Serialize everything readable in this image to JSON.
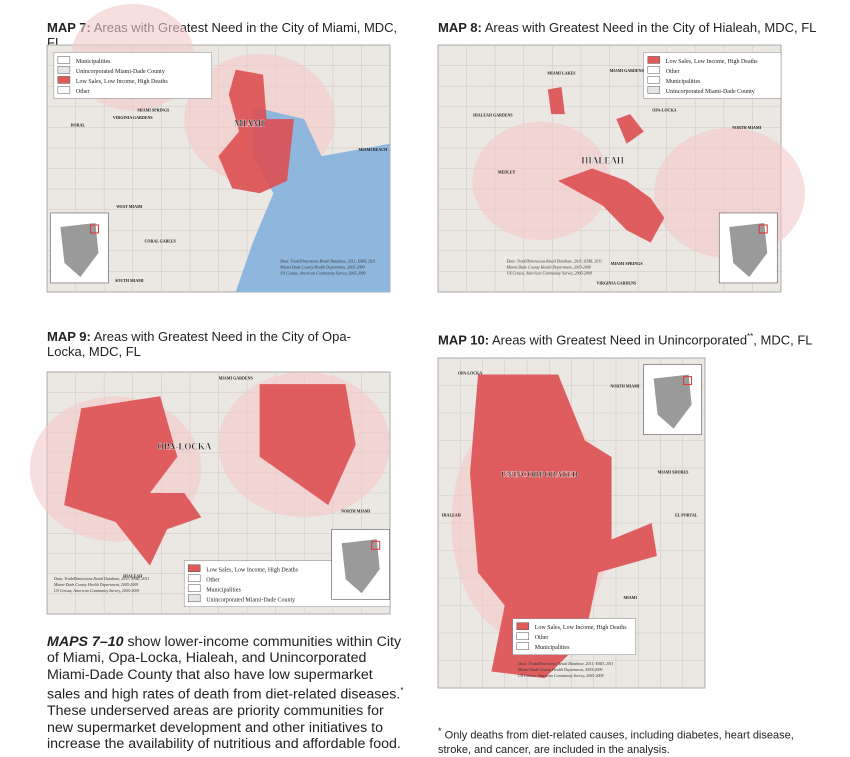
{
  "maps": [
    {
      "label": "MAP 7:",
      "title": "Areas with Greatest Need in the City of Miami, MDC, FL",
      "legend": [
        {
          "text": "Municipalities",
          "swatch": "#ffffff"
        },
        {
          "text": "Unincorporated Miami-Dade County",
          "swatch": "#e6e6e6"
        },
        {
          "text": "Low Sales, Low Income, High Deaths",
          "swatch": "#e05a5a"
        },
        {
          "text": "Other",
          "swatch": "#ffffff"
        }
      ],
      "places": [
        "MIAMI",
        "MIAMI BEACH",
        "CORAL GABLES",
        "DORAL",
        "SOUTH MIAMI",
        "WEST MIAMI",
        "VIRGINIA GARDENS",
        "MIAMI SPRINGS"
      ],
      "source": [
        "Data: TradeDimensions Retail Database, 2011; ESRI, 2011",
        "Miami-Dade County Health Department, 2005-2009",
        "US Census, American Community Survey, 2005-2009"
      ]
    },
    {
      "label": "MAP 8:",
      "title": "Areas with Greatest Need in the City of Hialeah, MDC, FL",
      "legend": [
        {
          "text": "Low Sales, Low Income, High Deaths",
          "swatch": "#e05a5a"
        },
        {
          "text": "Other",
          "swatch": "#ffffff"
        },
        {
          "text": "Municipalities",
          "swatch": "#ffffff"
        },
        {
          "text": "Unincorporated Miami-Dade County",
          "swatch": "#e6e6e6"
        }
      ],
      "places": [
        "HIALEAH",
        "MIAMI LAKES",
        "MIAMI GARDENS",
        "OPA-LOCKA",
        "NORTH MIAMI",
        "HIALEAH GARDENS",
        "MEDLEY",
        "MIAMI SPRINGS",
        "VIRGINIA GARDENS"
      ],
      "source": [
        "Data: TradeDimensions Retail Database, 2011; ESRI, 2011",
        "Miami-Dade County Health Department, 2005-2009",
        "US Census, American Community Survey, 2005-2009"
      ]
    },
    {
      "label": "MAP 9:",
      "title": "Areas with Greatest Need in the City of Opa-Locka, MDC, FL",
      "legend": [
        {
          "text": "Low Sales, Low Income, High Deaths",
          "swatch": "#e05a5a"
        },
        {
          "text": "Other",
          "swatch": "#ffffff"
        },
        {
          "text": "Municipalities",
          "swatch": "#ffffff"
        },
        {
          "text": "Unincorporated Miami-Dade County",
          "swatch": "#e6e6e6"
        }
      ],
      "places": [
        "OPA-LOCKA",
        "MIAMI GARDENS",
        "NORTH MIAMI",
        "HIALEAH"
      ],
      "source": [
        "Data: TradeDimensions Retail Database, 2011; ESRI, 2011",
        "Miami-Dade County Health Department, 2005-2009",
        "US Census, American Community Survey, 2005-2009"
      ]
    },
    {
      "label": "MAP 10:",
      "title": "Areas with Greatest Need in Unincorporated",
      "title_sup": "**",
      "title_end": ", MDC, FL",
      "legend": [
        {
          "text": "Low Sales, Low Income, High Deaths",
          "swatch": "#e05a5a"
        },
        {
          "text": "Other",
          "swatch": "#ffffff"
        },
        {
          "text": "Municipalities",
          "swatch": "#ffffff"
        }
      ],
      "places": [
        "UNINCORPORATED",
        "OPA-LOCKA",
        "NORTH MIAMI",
        "MIAMI SHORES",
        "EL PORTAL",
        "HIALEAH",
        "MIAMI"
      ],
      "source": [
        "Data: TradeDimensions Retail Database, 2011; ESRI, 2011",
        "Miami-Dade County Health Department, 2005-2009",
        "US Census, American Community Survey, 2005-2009"
      ]
    }
  ],
  "summary": {
    "lead": "MAPS 7–10",
    "text": "show lower-income communities within City of Miami, Opa-Locka, Hialeah, and Unincorporated Miami-Dade County that also have low supermarket sales and high rates of death from diet-related diseases.",
    "sup": "*",
    "text_end": "These underserved areas are priority communities for new supermarket development and other initiatives to increase the availability of nutritious and affordable food."
  },
  "footnote": {
    "mark": "*",
    "text": "Only deaths from diet-related causes, including diabetes, heart disease, stroke, and cancer, are included in the analysis."
  }
}
